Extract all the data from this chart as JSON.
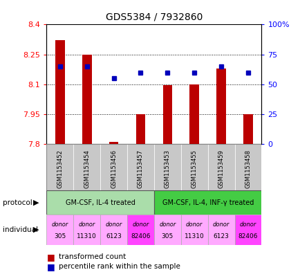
{
  "title": "GDS5384 / 7932860",
  "samples": [
    "GSM1153452",
    "GSM1153454",
    "GSM1153456",
    "GSM1153457",
    "GSM1153453",
    "GSM1153455",
    "GSM1153459",
    "GSM1153458"
  ],
  "bar_values": [
    8.32,
    8.25,
    7.81,
    7.95,
    8.095,
    8.1,
    8.18,
    7.95
  ],
  "bar_base": 7.8,
  "dot_values": [
    65,
    65,
    55,
    60,
    60,
    60,
    65,
    60
  ],
  "ylim": [
    7.8,
    8.4
  ],
  "y_ticks_left": [
    7.8,
    7.95,
    8.1,
    8.25,
    8.4
  ],
  "y_ticks_right": [
    0,
    25,
    50,
    75,
    100
  ],
  "bar_color": "#bb0000",
  "dot_color": "#0000bb",
  "protocol_labels": [
    "GM-CSF, IL-4 treated",
    "GM-CSF, IL-4, INF-γ treated"
  ],
  "protocol_color_left": "#aaddaa",
  "protocol_color_right": "#44cc44",
  "individual_colors": [
    "#ffaaff",
    "#ffaaff",
    "#ffaaff",
    "#ff44ff",
    "#ffaaff",
    "#ffaaff",
    "#ffaaff",
    "#ff44ff"
  ],
  "individual_labels_top": [
    "donor",
    "donor",
    "donor",
    "donor",
    "donor",
    "donor",
    "donor",
    "donor"
  ],
  "individual_labels_bot": [
    "305",
    "11310",
    "6123",
    "82406",
    "305",
    "11310",
    "6123",
    "82406"
  ],
  "bg_color": "#ffffff",
  "label_bg": "#c8c8c8",
  "legend_square_color_red": "#bb0000",
  "legend_square_color_blue": "#0000bb"
}
